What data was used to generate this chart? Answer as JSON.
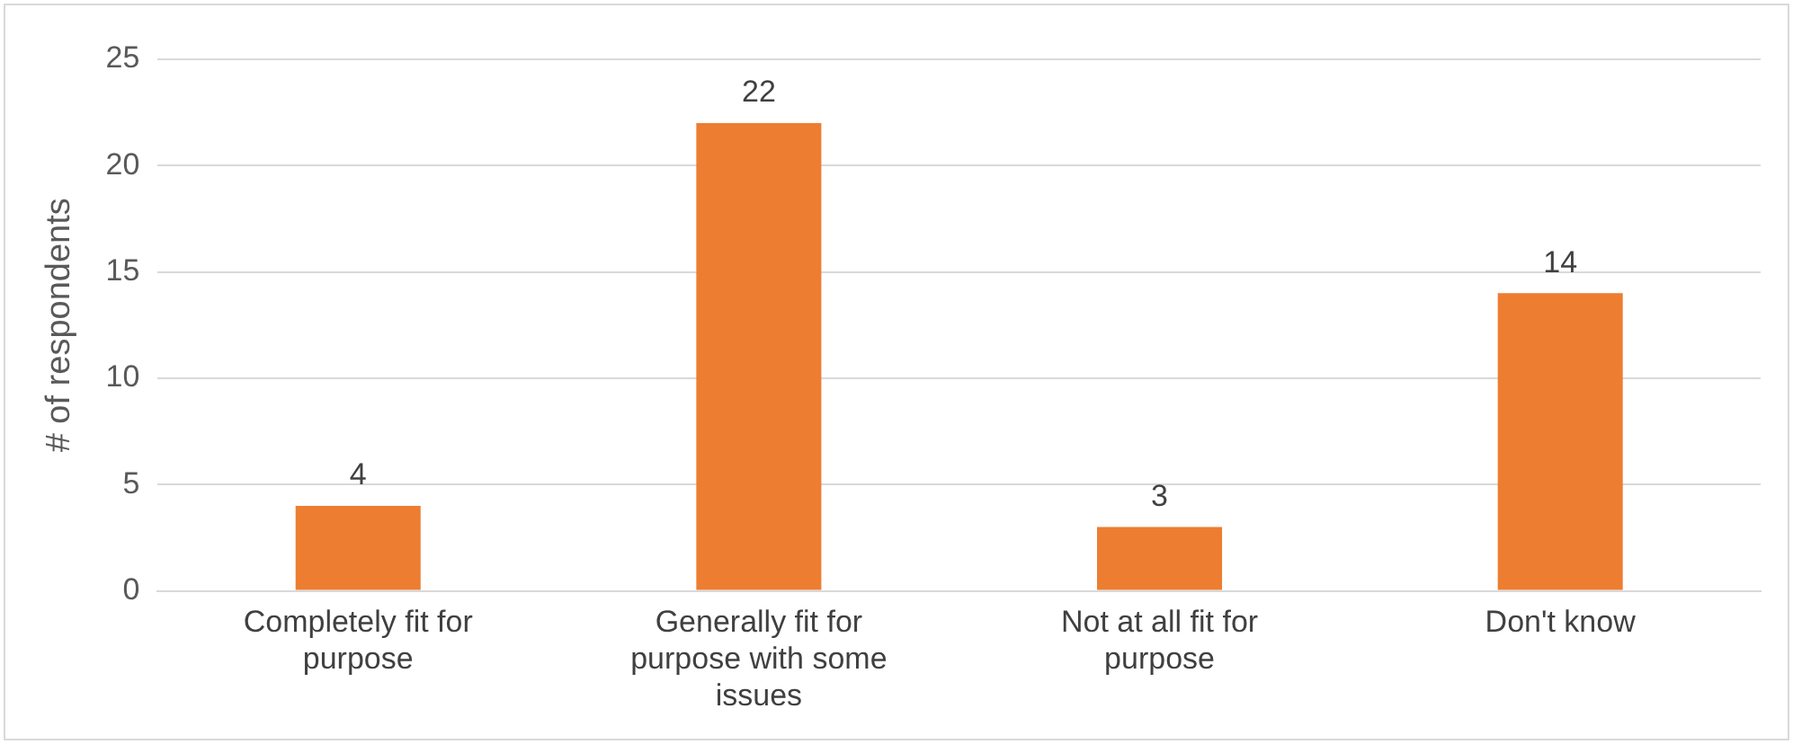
{
  "chart_data": {
    "type": "bar",
    "ylabel": "# of respondents",
    "categories": [
      "Completely fit for purpose",
      "Generally fit for purpose with some issues",
      "Not at all fit for purpose",
      "Don't know"
    ],
    "values": [
      4,
      22,
      3,
      14
    ],
    "color": "#ed7d31",
    "ylim": [
      0,
      25
    ],
    "yticks": [
      0,
      5,
      10,
      15,
      20,
      25
    ],
    "grid": "y",
    "data_labels": true
  }
}
